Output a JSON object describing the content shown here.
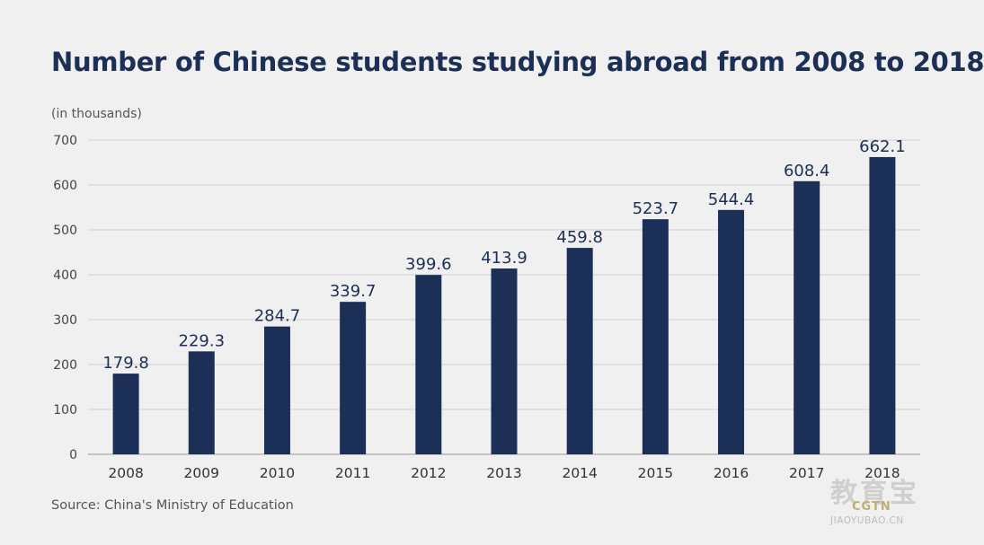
{
  "chart_data": {
    "type": "bar",
    "title": "Number of Chinese students studying abroad from 2008 to 2018",
    "unit_label": "(in thousands)",
    "source": "Source: China's Ministry of Education",
    "categories": [
      "2008",
      "2009",
      "2010",
      "2011",
      "2012",
      "2013",
      "2014",
      "2015",
      "2016",
      "2017",
      "2018"
    ],
    "values": [
      179.8,
      229.3,
      284.7,
      339.7,
      399.6,
      413.9,
      459.8,
      523.7,
      544.4,
      608.4,
      662.1
    ],
    "data_labels": [
      "179.8",
      "229.3",
      "284.7",
      "339.7",
      "399.6",
      "413.9",
      "459.8",
      "523.7",
      "544.4",
      "608.4",
      "662.1"
    ],
    "yticks": [
      "0",
      "100",
      "200",
      "300",
      "400",
      "500",
      "600",
      "700"
    ],
    "ylim": [
      0,
      700
    ],
    "grid": true,
    "bar_color": "#1c2f57",
    "legend": "none"
  },
  "watermark": {
    "main": "教育宝",
    "brand": "CGTN",
    "sub": "JIAOYUBAO.CN"
  }
}
